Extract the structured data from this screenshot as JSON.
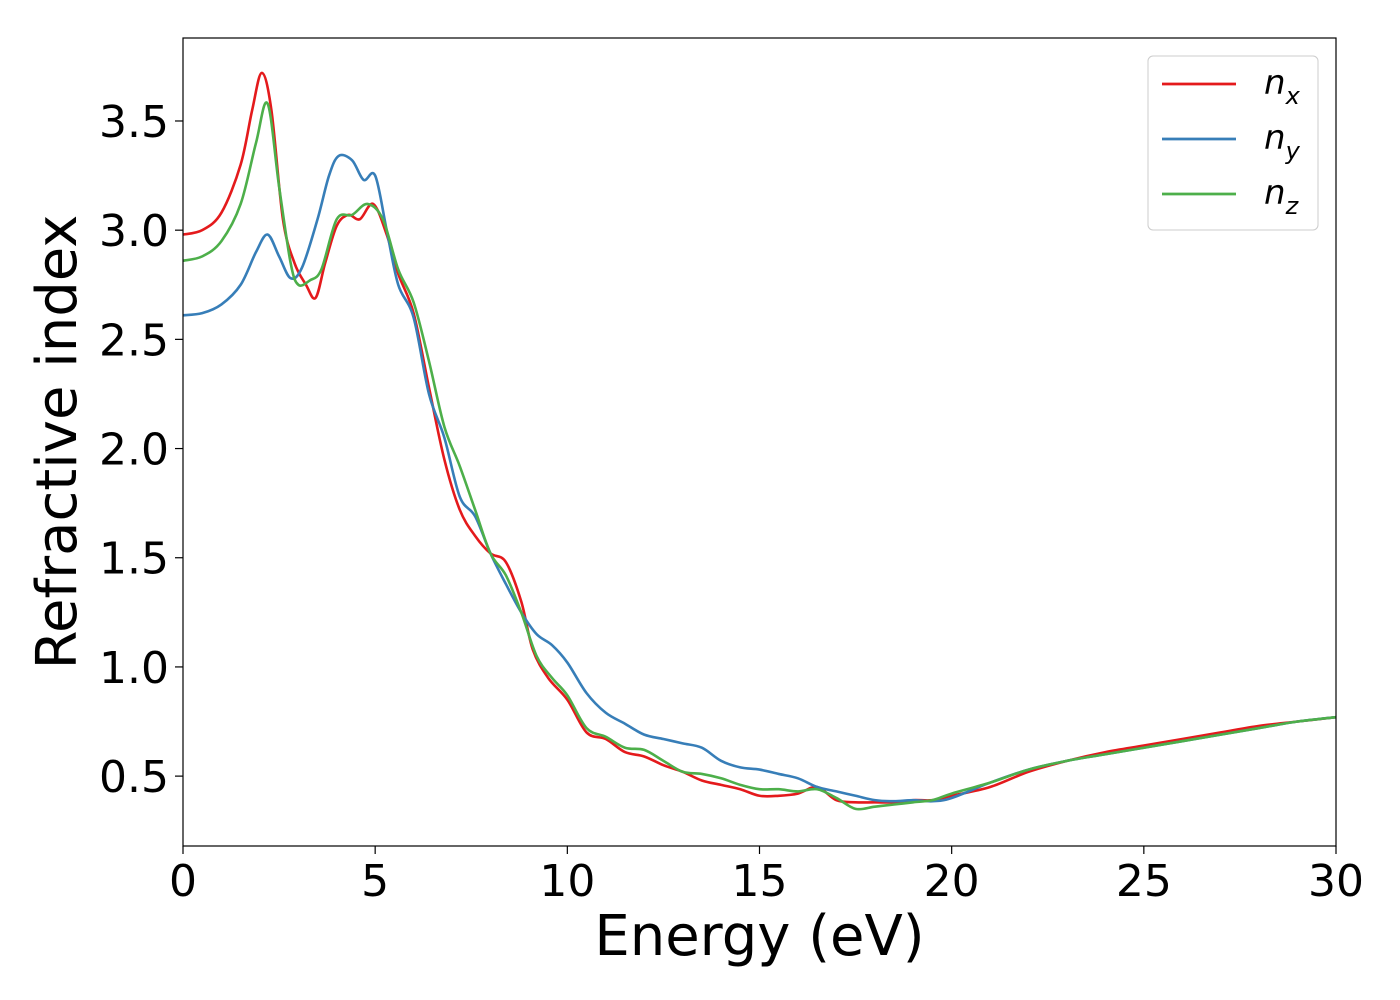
{
  "chart_data": {
    "type": "line",
    "title": "",
    "xlabel": "Energy (eV)",
    "ylabel": "Refractive index",
    "xlim": [
      0,
      30
    ],
    "ylim": [
      0.18,
      3.88
    ],
    "xticks": [
      0,
      5,
      10,
      15,
      20,
      25,
      30
    ],
    "yticks": [
      0.5,
      1.0,
      1.5,
      2.0,
      2.5,
      3.0,
      3.5
    ],
    "xtick_labels": [
      "0",
      "5",
      "10",
      "15",
      "20",
      "25",
      "30"
    ],
    "ytick_labels": [
      "0.5",
      "1.0",
      "1.5",
      "2.0",
      "2.5",
      "3.0",
      "3.5"
    ],
    "grid": false,
    "legend_position": "top-right",
    "series": [
      {
        "name": "n_x",
        "legend_base": "n",
        "legend_sub": "x",
        "color": "#e41a1c",
        "points": [
          [
            0,
            2.98
          ],
          [
            0.5,
            3.0
          ],
          [
            1.0,
            3.08
          ],
          [
            1.5,
            3.3
          ],
          [
            1.8,
            3.55
          ],
          [
            2.05,
            3.72
          ],
          [
            2.3,
            3.55
          ],
          [
            2.6,
            3.05
          ],
          [
            2.9,
            2.85
          ],
          [
            3.2,
            2.75
          ],
          [
            3.45,
            2.69
          ],
          [
            3.7,
            2.85
          ],
          [
            4.0,
            3.02
          ],
          [
            4.3,
            3.07
          ],
          [
            4.6,
            3.05
          ],
          [
            4.95,
            3.12
          ],
          [
            5.3,
            2.98
          ],
          [
            5.6,
            2.8
          ],
          [
            6.0,
            2.62
          ],
          [
            6.4,
            2.28
          ],
          [
            6.8,
            1.95
          ],
          [
            7.2,
            1.72
          ],
          [
            7.6,
            1.6
          ],
          [
            8.0,
            1.52
          ],
          [
            8.4,
            1.48
          ],
          [
            8.8,
            1.3
          ],
          [
            9.1,
            1.08
          ],
          [
            9.5,
            0.95
          ],
          [
            10.0,
            0.85
          ],
          [
            10.5,
            0.7
          ],
          [
            11.0,
            0.67
          ],
          [
            11.5,
            0.61
          ],
          [
            12.0,
            0.59
          ],
          [
            12.5,
            0.55
          ],
          [
            13.0,
            0.52
          ],
          [
            13.5,
            0.48
          ],
          [
            14.0,
            0.46
          ],
          [
            14.5,
            0.44
          ],
          [
            15.0,
            0.41
          ],
          [
            15.5,
            0.41
          ],
          [
            16.0,
            0.42
          ],
          [
            16.5,
            0.45
          ],
          [
            17.0,
            0.39
          ],
          [
            17.5,
            0.38
          ],
          [
            18.0,
            0.38
          ],
          [
            18.5,
            0.38
          ],
          [
            19.0,
            0.39
          ],
          [
            19.5,
            0.39
          ],
          [
            20.0,
            0.41
          ],
          [
            21.0,
            0.45
          ],
          [
            22.0,
            0.52
          ],
          [
            23.0,
            0.57
          ],
          [
            24.0,
            0.61
          ],
          [
            25.0,
            0.64
          ],
          [
            26.0,
            0.67
          ],
          [
            27.0,
            0.7
          ],
          [
            28.0,
            0.73
          ],
          [
            29.0,
            0.75
          ],
          [
            30.0,
            0.77
          ]
        ]
      },
      {
        "name": "n_y",
        "legend_base": "n",
        "legend_sub": "y",
        "color": "#377eb8",
        "points": [
          [
            0,
            2.61
          ],
          [
            0.5,
            2.62
          ],
          [
            1.0,
            2.66
          ],
          [
            1.5,
            2.75
          ],
          [
            1.9,
            2.9
          ],
          [
            2.2,
            2.98
          ],
          [
            2.5,
            2.88
          ],
          [
            2.8,
            2.78
          ],
          [
            3.1,
            2.83
          ],
          [
            3.5,
            3.05
          ],
          [
            3.8,
            3.25
          ],
          [
            4.05,
            3.34
          ],
          [
            4.4,
            3.32
          ],
          [
            4.7,
            3.23
          ],
          [
            5.0,
            3.25
          ],
          [
            5.3,
            3.0
          ],
          [
            5.6,
            2.75
          ],
          [
            6.0,
            2.6
          ],
          [
            6.4,
            2.25
          ],
          [
            6.8,
            2.05
          ],
          [
            7.2,
            1.78
          ],
          [
            7.6,
            1.69
          ],
          [
            8.0,
            1.52
          ],
          [
            8.4,
            1.38
          ],
          [
            8.8,
            1.25
          ],
          [
            9.2,
            1.15
          ],
          [
            9.6,
            1.1
          ],
          [
            10.0,
            1.02
          ],
          [
            10.5,
            0.88
          ],
          [
            11.0,
            0.79
          ],
          [
            11.5,
            0.74
          ],
          [
            12.0,
            0.69
          ],
          [
            12.5,
            0.67
          ],
          [
            13.0,
            0.65
          ],
          [
            13.5,
            0.63
          ],
          [
            14.0,
            0.57
          ],
          [
            14.5,
            0.54
          ],
          [
            15.0,
            0.53
          ],
          [
            15.5,
            0.51
          ],
          [
            16.0,
            0.49
          ],
          [
            16.5,
            0.45
          ],
          [
            17.0,
            0.43
          ],
          [
            17.5,
            0.41
          ],
          [
            18.0,
            0.39
          ],
          [
            18.5,
            0.385
          ],
          [
            19.0,
            0.39
          ],
          [
            19.5,
            0.385
          ],
          [
            20.0,
            0.4
          ],
          [
            21.0,
            0.47
          ],
          [
            22.0,
            0.53
          ],
          [
            23.0,
            0.57
          ],
          [
            24.0,
            0.6
          ],
          [
            25.0,
            0.63
          ],
          [
            26.0,
            0.66
          ],
          [
            27.0,
            0.69
          ],
          [
            28.0,
            0.72
          ],
          [
            29.0,
            0.75
          ],
          [
            30.0,
            0.77
          ]
        ]
      },
      {
        "name": "n_z",
        "legend_base": "n",
        "legend_sub": "z",
        "color": "#4daf4a",
        "points": [
          [
            0,
            2.86
          ],
          [
            0.5,
            2.88
          ],
          [
            1.0,
            2.95
          ],
          [
            1.5,
            3.12
          ],
          [
            1.9,
            3.4
          ],
          [
            2.2,
            3.58
          ],
          [
            2.5,
            3.2
          ],
          [
            2.8,
            2.85
          ],
          [
            3.0,
            2.75
          ],
          [
            3.3,
            2.77
          ],
          [
            3.6,
            2.82
          ],
          [
            4.0,
            3.05
          ],
          [
            4.4,
            3.07
          ],
          [
            4.8,
            3.12
          ],
          [
            5.2,
            3.05
          ],
          [
            5.6,
            2.82
          ],
          [
            6.0,
            2.67
          ],
          [
            6.4,
            2.4
          ],
          [
            6.8,
            2.1
          ],
          [
            7.2,
            1.92
          ],
          [
            7.6,
            1.72
          ],
          [
            8.0,
            1.52
          ],
          [
            8.4,
            1.42
          ],
          [
            8.8,
            1.25
          ],
          [
            9.2,
            1.05
          ],
          [
            9.6,
            0.95
          ],
          [
            10.0,
            0.87
          ],
          [
            10.5,
            0.72
          ],
          [
            11.0,
            0.68
          ],
          [
            11.5,
            0.63
          ],
          [
            12.0,
            0.62
          ],
          [
            12.5,
            0.57
          ],
          [
            13.0,
            0.52
          ],
          [
            13.5,
            0.51
          ],
          [
            14.0,
            0.49
          ],
          [
            14.5,
            0.46
          ],
          [
            15.0,
            0.44
          ],
          [
            15.5,
            0.44
          ],
          [
            16.0,
            0.43
          ],
          [
            16.5,
            0.44
          ],
          [
            17.0,
            0.4
          ],
          [
            17.5,
            0.35
          ],
          [
            18.0,
            0.36
          ],
          [
            18.5,
            0.37
          ],
          [
            19.0,
            0.38
          ],
          [
            19.5,
            0.39
          ],
          [
            20.0,
            0.42
          ],
          [
            21.0,
            0.47
          ],
          [
            22.0,
            0.53
          ],
          [
            23.0,
            0.57
          ],
          [
            24.0,
            0.6
          ],
          [
            25.0,
            0.63
          ],
          [
            26.0,
            0.66
          ],
          [
            27.0,
            0.69
          ],
          [
            28.0,
            0.72
          ],
          [
            29.0,
            0.75
          ],
          [
            30.0,
            0.77
          ]
        ]
      }
    ]
  }
}
